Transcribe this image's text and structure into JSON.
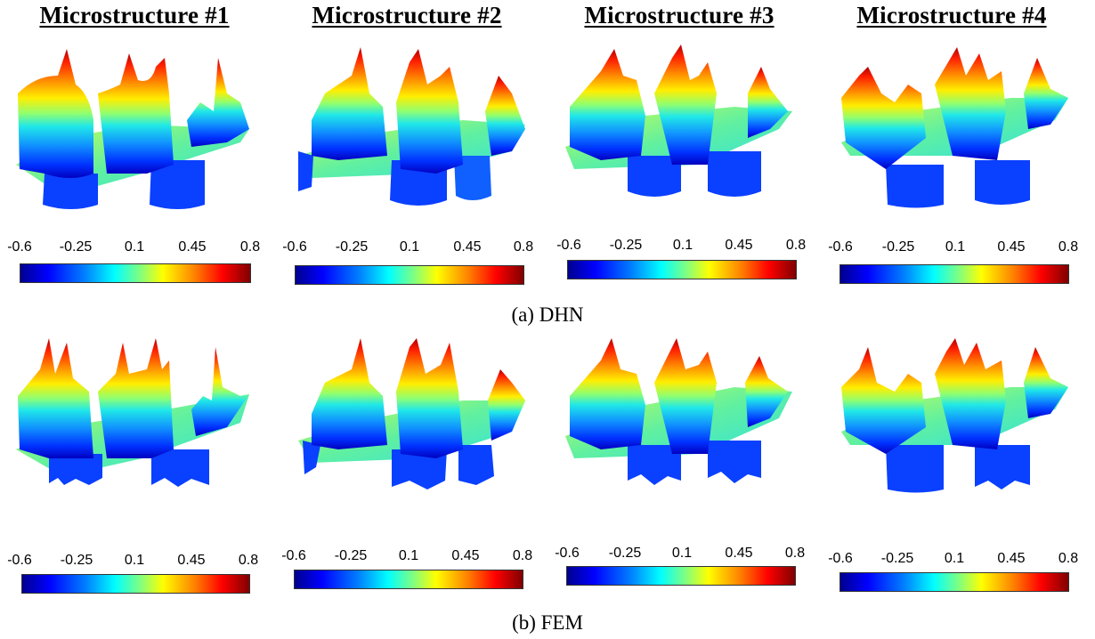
{
  "titles": [
    "Microstructure #1",
    "Microstructure #2",
    "Microstructure #3",
    "Microstructure #4"
  ],
  "colorbar": {
    "ticks": [
      "-0.6",
      "-0.25",
      "0.1",
      "0.45",
      "0.8"
    ],
    "range": [
      -0.6,
      0.8
    ],
    "colormap": "jet"
  },
  "captions": {
    "dhn": "(a) DHN",
    "fem": "(b) FEM"
  },
  "colors": {
    "jet": [
      "#00008f",
      "#0000ff",
      "#0080ff",
      "#00ffff",
      "#80ff80",
      "#ffff00",
      "#ff8000",
      "#ff0000",
      "#800000"
    ]
  }
}
